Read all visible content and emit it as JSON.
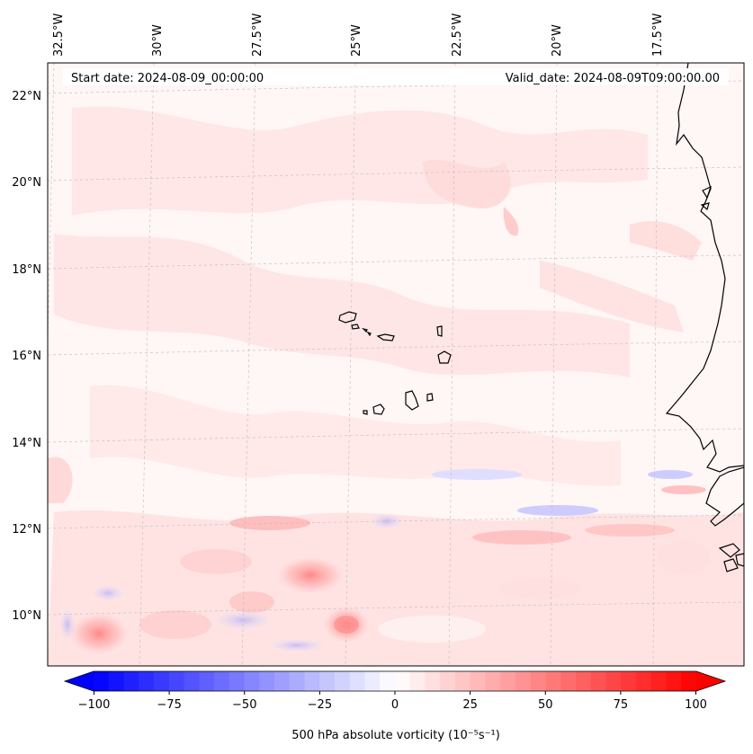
{
  "map": {
    "start_date": "Start date: 2024-08-09_00:00:00",
    "valid_date": "Valid_date: 2024-08-09T09:00:00.00",
    "lon_labels": [
      "32.5°W",
      "30°W",
      "27.5°W",
      "25°W",
      "22.5°W",
      "20°W",
      "17.5°W"
    ],
    "lat_labels": [
      "22°N",
      "20°N",
      "18°N",
      "16°N",
      "14°N",
      "12°N",
      "10°N"
    ],
    "features": [
      "Cape Verde islands",
      "West African coastline"
    ]
  },
  "colorbar": {
    "label": "500 hPa absolute vorticity (10⁻⁵s⁻¹)",
    "tick_values": [
      "−100",
      "−75",
      "−50",
      "−25",
      "0",
      "25",
      "50",
      "75",
      "100"
    ],
    "min": -100,
    "max": 100,
    "levels": 40,
    "colormap": "bwr"
  },
  "colors": {
    "negative": "#0000ff",
    "zero": "#ffffff",
    "positive": "#ff0000",
    "coastline": "#000000",
    "gridline": "#b0b0b0"
  }
}
